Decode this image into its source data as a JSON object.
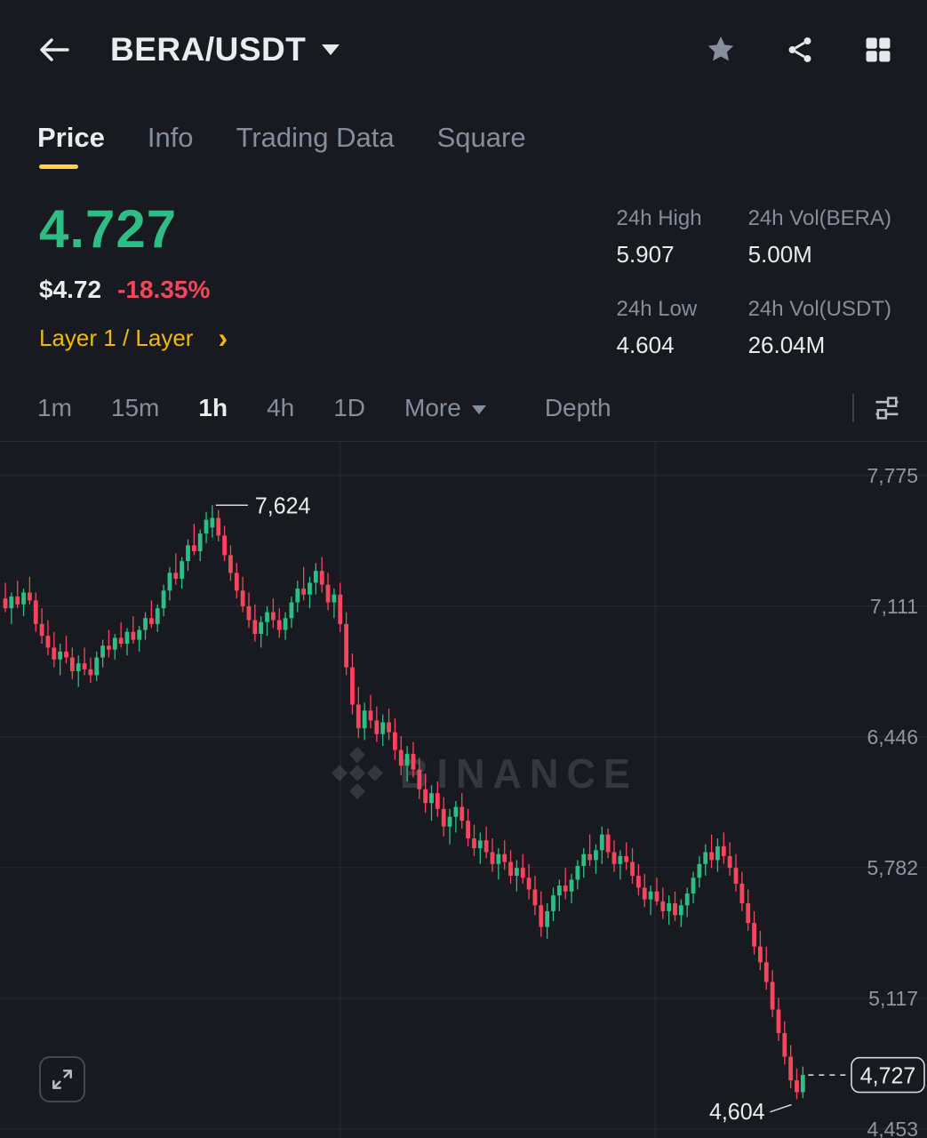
{
  "header": {
    "title": "BERA/USDT",
    "icons": [
      "back-arrow-icon",
      "pair-dropdown-caret-icon",
      "star-icon",
      "share-icon",
      "grid-layout-icon"
    ]
  },
  "tabs": [
    {
      "label": "Price",
      "active": true
    },
    {
      "label": "Info",
      "active": false
    },
    {
      "label": "Trading Data",
      "active": false
    },
    {
      "label": "Square",
      "active": false
    }
  ],
  "price_panel": {
    "last_price": "4.727",
    "fiat_value": "$4.72",
    "change_24h": "-18.35%",
    "category": "Layer 1 / Layer"
  },
  "stats": [
    {
      "label": "24h High",
      "value": "5.907"
    },
    {
      "label": "24h Vol(BERA)",
      "value": "5.00M"
    },
    {
      "label": "24h Low",
      "value": "4.604"
    },
    {
      "label": "24h Vol(USDT)",
      "value": "26.04M"
    }
  ],
  "toolbar": {
    "timeframes": [
      {
        "label": "1m",
        "active": false
      },
      {
        "label": "15m",
        "active": false
      },
      {
        "label": "1h",
        "active": true
      },
      {
        "label": "4h",
        "active": false
      },
      {
        "label": "1D",
        "active": false
      }
    ],
    "more_label": "More",
    "depth_label": "Depth"
  },
  "colors": {
    "up": "#2EBD85",
    "down": "#F6465D",
    "accent_yellow": "#FCD535",
    "category_yellow": "#F0B90B",
    "text_primary": "#EAECEF",
    "text_secondary": "#848E9C",
    "background": "#181A20"
  },
  "chart_data": {
    "type": "candlestick",
    "symbol": "BERA/USDT",
    "interval": "1h",
    "watermark": "BINANCE",
    "grid": true,
    "y_axis": {
      "min": 4453,
      "max": 7775,
      "ticks": [
        {
          "value": 7775,
          "label": "7,775"
        },
        {
          "value": 7111,
          "label": "7,111"
        },
        {
          "value": 6446,
          "label": "6,446"
        },
        {
          "value": 5782,
          "label": "5,782"
        },
        {
          "value": 5117,
          "label": "5,117"
        },
        {
          "value": 4453,
          "label": "4,453"
        }
      ]
    },
    "x_gridlines": [
      383,
      737
    ],
    "annotations": {
      "high": {
        "value": 7624,
        "label": "7,624"
      },
      "low": {
        "value": 4604,
        "label": "4,604"
      },
      "last": {
        "value": 4727,
        "label": "4,727"
      }
    },
    "candles_ohlc": [
      [
        7150,
        7230,
        7080,
        7100
      ],
      [
        7100,
        7180,
        7020,
        7160
      ],
      [
        7160,
        7240,
        7100,
        7120
      ],
      [
        7120,
        7200,
        7060,
        7180
      ],
      [
        7180,
        7260,
        7120,
        7140
      ],
      [
        7140,
        7180,
        6980,
        7020
      ],
      [
        7020,
        7100,
        6920,
        6960
      ],
      [
        6960,
        7040,
        6860,
        6900
      ],
      [
        6900,
        6980,
        6800,
        6840
      ],
      [
        6840,
        6920,
        6760,
        6880
      ],
      [
        6880,
        6960,
        6820,
        6850
      ],
      [
        6850,
        6900,
        6740,
        6780
      ],
      [
        6780,
        6860,
        6700,
        6820
      ],
      [
        6820,
        6900,
        6760,
        6790
      ],
      [
        6790,
        6850,
        6720,
        6760
      ],
      [
        6760,
        6880,
        6730,
        6850
      ],
      [
        6850,
        6940,
        6800,
        6910
      ],
      [
        6910,
        6990,
        6850,
        6890
      ],
      [
        6890,
        6970,
        6840,
        6950
      ],
      [
        6950,
        7030,
        6900,
        6920
      ],
      [
        6920,
        7000,
        6860,
        6980
      ],
      [
        6980,
        7060,
        6920,
        6940
      ],
      [
        6940,
        7010,
        6880,
        6990
      ],
      [
        6990,
        7080,
        6940,
        7050
      ],
      [
        7050,
        7140,
        7000,
        7020
      ],
      [
        7020,
        7120,
        6980,
        7100
      ],
      [
        7100,
        7220,
        7060,
        7190
      ],
      [
        7190,
        7310,
        7140,
        7280
      ],
      [
        7280,
        7380,
        7220,
        7250
      ],
      [
        7250,
        7360,
        7200,
        7340
      ],
      [
        7340,
        7450,
        7290,
        7420
      ],
      [
        7420,
        7530,
        7370,
        7390
      ],
      [
        7390,
        7500,
        7340,
        7480
      ],
      [
        7480,
        7590,
        7430,
        7550
      ],
      [
        7510,
        7624,
        7460,
        7560
      ],
      [
        7560,
        7600,
        7440,
        7470
      ],
      [
        7470,
        7520,
        7340,
        7370
      ],
      [
        7370,
        7420,
        7240,
        7280
      ],
      [
        7280,
        7330,
        7150,
        7190
      ],
      [
        7190,
        7260,
        7080,
        7110
      ],
      [
        7110,
        7180,
        7000,
        7040
      ],
      [
        7040,
        7120,
        6930,
        6970
      ],
      [
        6970,
        7060,
        6900,
        7030
      ],
      [
        7030,
        7110,
        6960,
        7080
      ],
      [
        7080,
        7150,
        7000,
        7040
      ],
      [
        7040,
        7100,
        6950,
        6990
      ],
      [
        6990,
        7080,
        6940,
        7050
      ],
      [
        7050,
        7160,
        7000,
        7130
      ],
      [
        7130,
        7240,
        7080,
        7200
      ],
      [
        7200,
        7310,
        7140,
        7170
      ],
      [
        7170,
        7260,
        7100,
        7230
      ],
      [
        7230,
        7330,
        7170,
        7290
      ],
      [
        7290,
        7360,
        7180,
        7220
      ],
      [
        7220,
        7280,
        7090,
        7130
      ],
      [
        7130,
        7200,
        7050,
        7170
      ],
      [
        7170,
        7230,
        6980,
        7020
      ],
      [
        7020,
        7080,
        6760,
        6800
      ],
      [
        6800,
        6870,
        6560,
        6610
      ],
      [
        6610,
        6700,
        6440,
        6490
      ],
      [
        6490,
        6620,
        6430,
        6580
      ],
      [
        6580,
        6660,
        6490,
        6530
      ],
      [
        6530,
        6600,
        6420,
        6460
      ],
      [
        6460,
        6560,
        6400,
        6520
      ],
      [
        6520,
        6590,
        6430,
        6470
      ],
      [
        6470,
        6540,
        6330,
        6380
      ],
      [
        6380,
        6450,
        6250,
        6300
      ],
      [
        6300,
        6400,
        6220,
        6360
      ],
      [
        6360,
        6420,
        6240,
        6280
      ],
      [
        6280,
        6340,
        6130,
        6180
      ],
      [
        6180,
        6260,
        6060,
        6110
      ],
      [
        6110,
        6200,
        6020,
        6160
      ],
      [
        6160,
        6220,
        6040,
        6080
      ],
      [
        6080,
        6140,
        5940,
        5990
      ],
      [
        5990,
        6080,
        5900,
        6040
      ],
      [
        6040,
        6120,
        5960,
        6090
      ],
      [
        6090,
        6160,
        5980,
        6020
      ],
      [
        6020,
        6080,
        5890,
        5930
      ],
      [
        5930,
        6000,
        5840,
        5880
      ],
      [
        5880,
        5960,
        5800,
        5920
      ],
      [
        5920,
        5990,
        5830,
        5860
      ],
      [
        5860,
        5930,
        5760,
        5800
      ],
      [
        5800,
        5880,
        5720,
        5850
      ],
      [
        5850,
        5920,
        5770,
        5810
      ],
      [
        5810,
        5870,
        5700,
        5740
      ],
      [
        5740,
        5820,
        5660,
        5780
      ],
      [
        5780,
        5850,
        5700,
        5730
      ],
      [
        5730,
        5800,
        5620,
        5670
      ],
      [
        5670,
        5740,
        5540,
        5590
      ],
      [
        5590,
        5660,
        5430,
        5480
      ],
      [
        5480,
        5600,
        5420,
        5560
      ],
      [
        5560,
        5680,
        5510,
        5640
      ],
      [
        5640,
        5720,
        5560,
        5690
      ],
      [
        5690,
        5780,
        5620,
        5660
      ],
      [
        5660,
        5750,
        5600,
        5720
      ],
      [
        5720,
        5820,
        5670,
        5790
      ],
      [
        5790,
        5880,
        5730,
        5850
      ],
      [
        5850,
        5950,
        5790,
        5820
      ],
      [
        5820,
        5900,
        5750,
        5870
      ],
      [
        5870,
        5990,
        5800,
        5950
      ],
      [
        5950,
        5980,
        5830,
        5860
      ],
      [
        5860,
        5920,
        5760,
        5800
      ],
      [
        5800,
        5870,
        5720,
        5840
      ],
      [
        5840,
        5910,
        5770,
        5810
      ],
      [
        5810,
        5880,
        5700,
        5740
      ],
      [
        5740,
        5800,
        5640,
        5680
      ],
      [
        5680,
        5750,
        5580,
        5620
      ],
      [
        5620,
        5690,
        5540,
        5660
      ],
      [
        5660,
        5730,
        5590,
        5610
      ],
      [
        5610,
        5680,
        5520,
        5560
      ],
      [
        5560,
        5640,
        5490,
        5600
      ],
      [
        5600,
        5660,
        5510,
        5540
      ],
      [
        5540,
        5620,
        5480,
        5590
      ],
      [
        5590,
        5680,
        5530,
        5650
      ],
      [
        5650,
        5760,
        5600,
        5730
      ],
      [
        5730,
        5840,
        5680,
        5800
      ],
      [
        5800,
        5900,
        5740,
        5860
      ],
      [
        5860,
        5950,
        5780,
        5820
      ],
      [
        5820,
        5930,
        5760,
        5890
      ],
      [
        5890,
        5960,
        5800,
        5840
      ],
      [
        5840,
        5910,
        5740,
        5780
      ],
      [
        5780,
        5850,
        5660,
        5700
      ],
      [
        5700,
        5760,
        5560,
        5600
      ],
      [
        5600,
        5670,
        5460,
        5500
      ],
      [
        5500,
        5560,
        5340,
        5380
      ],
      [
        5380,
        5460,
        5260,
        5300
      ],
      [
        5300,
        5380,
        5160,
        5200
      ],
      [
        5200,
        5260,
        5020,
        5060
      ],
      [
        5060,
        5120,
        4900,
        4940
      ],
      [
        4940,
        5000,
        4780,
        4820
      ],
      [
        4820,
        4880,
        4660,
        4700
      ],
      [
        4700,
        4760,
        4604,
        4640
      ],
      [
        4640,
        4770,
        4610,
        4727
      ]
    ]
  }
}
